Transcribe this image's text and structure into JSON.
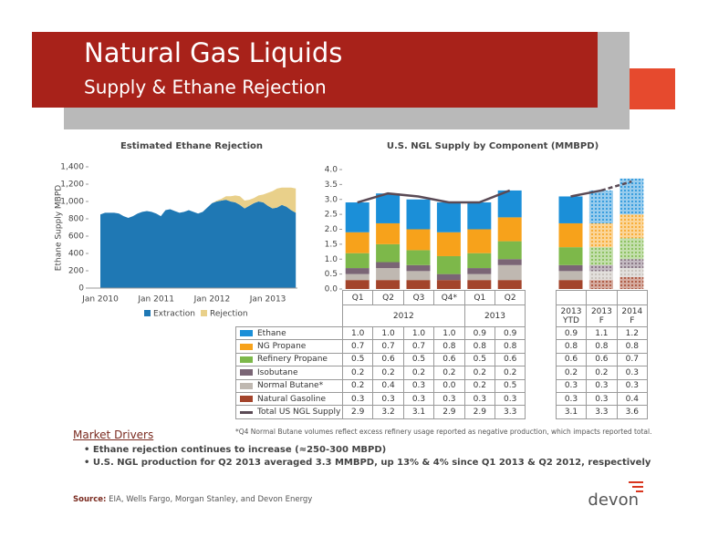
{
  "header": {
    "title": "Natural Gas Liquids",
    "subtitle": "Supply & Ethane Rejection"
  },
  "chart_data": [
    {
      "type": "area",
      "stacked": true,
      "title": "Estimated Ethane Rejection",
      "y_label": "Ethane Supply MBPD",
      "categories": [
        "Jan 2010",
        null,
        null,
        null,
        null,
        null,
        null,
        null,
        null,
        null,
        null,
        null,
        "Jan 2011",
        null,
        null,
        null,
        null,
        null,
        null,
        null,
        null,
        null,
        null,
        null,
        "Jan 2012",
        null,
        null,
        null,
        null,
        null,
        null,
        null,
        null,
        null,
        null,
        null,
        "Jan 2013",
        null,
        null,
        null,
        null,
        null,
        null
      ],
      "series": [
        {
          "name": "Extraction",
          "color": "#1f78b4",
          "values": [
            850,
            870,
            870,
            870,
            860,
            830,
            810,
            830,
            860,
            880,
            890,
            880,
            860,
            830,
            900,
            910,
            890,
            870,
            880,
            900,
            880,
            860,
            880,
            930,
            980,
            1000,
            1010,
            1020,
            1000,
            990,
            960,
            920,
            950,
            980,
            1000,
            990,
            950,
            920,
            930,
            960,
            940,
            900,
            870
          ]
        },
        {
          "name": "Rejection",
          "color": "#e9d08a",
          "values": [
            0,
            0,
            0,
            0,
            0,
            0,
            0,
            0,
            0,
            0,
            0,
            0,
            0,
            0,
            0,
            0,
            0,
            0,
            0,
            0,
            0,
            0,
            0,
            0,
            0,
            10,
            20,
            40,
            60,
            80,
            100,
            90,
            70,
            60,
            70,
            90,
            150,
            200,
            220,
            200,
            220,
            260,
            280
          ]
        }
      ],
      "ylim": [
        0,
        1400
      ],
      "yticks": [
        0,
        200,
        400,
        600,
        800,
        {
          "value": 1000,
          "label": "1,000"
        },
        {
          "value": 1200,
          "label": "1,200"
        },
        {
          "value": 1400,
          "label": "1,400"
        }
      ],
      "legend": "bottom"
    },
    {
      "type": "stacked_bar",
      "title": "U.S. NGL Supply by Component (MMBPD)",
      "categories": [
        "Q1",
        "Q2",
        "Q3",
        "Q4*",
        "Q1",
        "Q2",
        null,
        "2013 YTD",
        "2013 F",
        "2014 F"
      ],
      "category_groups": [
        "2012",
        "2013"
      ],
      "patterned": [
        false,
        false,
        false,
        false,
        false,
        false,
        false,
        false,
        true,
        true
      ],
      "series": [
        {
          "name": "Ethane",
          "color": "#1b8fd8",
          "values": [
            1.0,
            1.0,
            1.0,
            1.0,
            0.9,
            0.9,
            null,
            0.9,
            1.1,
            1.2
          ],
          "value_labels": [
            "1.0",
            "1.0",
            "1.0",
            "1.0",
            "0.9",
            "0.9",
            null,
            "0.9",
            "1.1",
            "1.2"
          ]
        },
        {
          "name": "NG Propane",
          "color": "#f7a21b",
          "values": [
            0.7,
            0.7,
            0.7,
            0.8,
            0.8,
            0.8,
            null,
            0.8,
            0.8,
            0.8
          ],
          "value_labels": [
            "0.7",
            "0.7",
            "0.7",
            "0.8",
            "0.8",
            "0.8",
            null,
            "0.8",
            "0.8",
            "0.8"
          ]
        },
        {
          "name": "Refinery Propane",
          "color": "#7db84a",
          "values": [
            0.5,
            0.6,
            0.5,
            0.6,
            0.5,
            0.6,
            null,
            0.6,
            0.6,
            0.7
          ],
          "value_labels": [
            "0.5",
            "0.6",
            "0.5",
            "0.6",
            "0.5",
            "0.6",
            null,
            "0.6",
            "0.6",
            "0.7"
          ]
        },
        {
          "name": "Isobutane",
          "color": "#7a6575",
          "values": [
            0.2,
            0.2,
            0.2,
            0.2,
            0.2,
            0.2,
            null,
            0.2,
            0.2,
            0.3
          ],
          "value_labels": [
            "0.2",
            "0.2",
            "0.2",
            "0.2",
            "0.2",
            "0.2",
            null,
            "0.2",
            "0.2",
            "0.3"
          ]
        },
        {
          "name": "Normal Butane*",
          "color": "#bfb8b1",
          "values": [
            0.2,
            0.4,
            0.3,
            0.0,
            0.2,
            0.5,
            null,
            0.3,
            0.3,
            0.3
          ],
          "value_labels": [
            "0.2",
            "0.4",
            "0.3",
            "0.0",
            "0.2",
            "0.5",
            null,
            "0.3",
            "0.3",
            "0.3"
          ]
        },
        {
          "name": "Natural Gasoline",
          "color": "#a3442b",
          "values": [
            0.3,
            0.3,
            0.3,
            0.3,
            0.3,
            0.3,
            null,
            0.3,
            0.3,
            0.4
          ],
          "value_labels": [
            "0.3",
            "0.3",
            "0.3",
            "0.3",
            "0.3",
            "0.3",
            null,
            "0.3",
            "0.3",
            "0.4"
          ]
        },
        {
          "name": "Total US NGL Supply",
          "type": "line",
          "color": "#5a4a55",
          "values": [
            2.9,
            3.2,
            3.1,
            2.9,
            2.9,
            3.3,
            null,
            3.1,
            3.3,
            3.6
          ],
          "value_labels": [
            "2.9",
            "3.2",
            "3.1",
            "2.9",
            "2.9",
            "3.3",
            null,
            "3.1",
            "3.3",
            "3.6"
          ]
        }
      ],
      "ylim": [
        0,
        4
      ],
      "yticks": [
        {
          "value": 0,
          "label": "0.0"
        },
        {
          "value": 0.5,
          "label": "0.5"
        },
        {
          "value": 1,
          "label": "1.0"
        },
        {
          "value": 1.5,
          "label": "1.5"
        },
        {
          "value": 2,
          "label": "2.0"
        },
        {
          "value": 2.5,
          "label": "2.5"
        },
        {
          "value": 3,
          "label": "3.0"
        },
        {
          "value": 3.5,
          "label": "3.5"
        },
        {
          "value": 4,
          "label": "4.0"
        }
      ]
    }
  ],
  "footnote": "*Q4 Normal Butane volumes reflect excess refinery usage reported as negative production, which impacts reported total.",
  "market_drivers": {
    "title": "Market Drivers",
    "bullets": [
      "Ethane rejection continues to increase (≈250-300 MBPD)",
      "U.S. NGL production for Q2 2013 averaged 3.3 MMBPD, up 13% & 4% since Q1 2013 & Q2 2012, respectively"
    ]
  },
  "source": {
    "label": "Source:",
    "text": "EIA, Wells Fargo, Morgan Stanley, and Devon Energy"
  },
  "logo": "devon"
}
